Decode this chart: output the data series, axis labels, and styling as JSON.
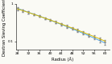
{
  "title": "",
  "xlabel": "Radius (Å)",
  "ylabel": "Dextran Sieving Coefficient",
  "xlim": [
    27.5,
    61.5
  ],
  "ylim_log": [
    0.06,
    1.0
  ],
  "xticks": [
    28,
    32,
    36,
    40,
    44,
    48,
    52,
    56,
    60
  ],
  "yticks": [
    0.1,
    1.0
  ],
  "ytick_labels": [
    "0.1",
    "1"
  ],
  "background_color": "#fafaf5",
  "line1_color": "#4da6e8",
  "line2_color": "#d4b800",
  "line1_x": [
    28,
    30,
    32,
    34,
    36,
    38,
    40,
    42,
    44,
    46,
    48,
    50,
    52,
    54,
    56,
    58,
    60
  ],
  "line1_y": [
    0.76,
    0.68,
    0.6,
    0.535,
    0.475,
    0.42,
    0.37,
    0.325,
    0.285,
    0.25,
    0.218,
    0.19,
    0.165,
    0.143,
    0.123,
    0.106,
    0.091
  ],
  "line2_y": [
    0.74,
    0.665,
    0.595,
    0.53,
    0.472,
    0.42,
    0.373,
    0.33,
    0.292,
    0.258,
    0.228,
    0.2,
    0.176,
    0.154,
    0.135,
    0.118,
    0.102
  ],
  "line1_err_lo": [
    0.05,
    0.04,
    0.035,
    0.03,
    0.027,
    0.024,
    0.022,
    0.02,
    0.018,
    0.016,
    0.014,
    0.013,
    0.012,
    0.011,
    0.01,
    0.009,
    0.008
  ],
  "line1_err_hi": [
    0.05,
    0.04,
    0.035,
    0.03,
    0.027,
    0.024,
    0.022,
    0.02,
    0.018,
    0.016,
    0.014,
    0.013,
    0.012,
    0.011,
    0.01,
    0.009,
    0.008
  ],
  "line2_err_lo": [
    0.05,
    0.04,
    0.035,
    0.03,
    0.027,
    0.024,
    0.022,
    0.02,
    0.018,
    0.016,
    0.014,
    0.013,
    0.012,
    0.011,
    0.01,
    0.009,
    0.008
  ],
  "line2_err_hi": [
    0.05,
    0.04,
    0.035,
    0.03,
    0.027,
    0.024,
    0.022,
    0.02,
    0.018,
    0.016,
    0.014,
    0.013,
    0.012,
    0.011,
    0.01,
    0.009,
    0.008
  ],
  "ylabel_fontsize": 3.8,
  "xlabel_fontsize": 3.8,
  "tick_fontsize": 3.2,
  "linewidth": 0.7,
  "capsize": 0.8,
  "elinewidth": 0.45,
  "marker_size": 0.5
}
